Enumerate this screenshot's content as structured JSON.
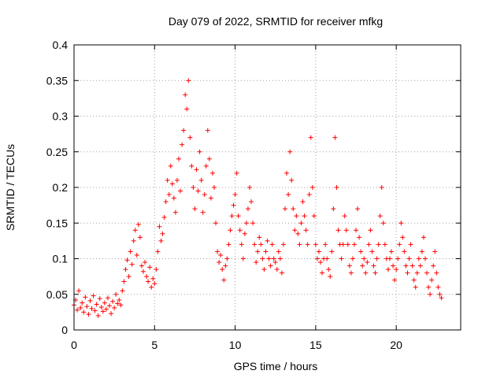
{
  "chart_data": {
    "type": "scatter",
    "title": "Day 079 of 2022, SRMTID for receiver mfkg",
    "xlabel": "GPS time / hours",
    "ylabel": "SRMTID / TECUs",
    "xlim": [
      0,
      24
    ],
    "ylim": [
      0,
      0.4
    ],
    "xticks": [
      0,
      5,
      10,
      15,
      20
    ],
    "yticks": [
      0,
      0.05,
      0.1,
      0.15,
      0.2,
      0.25,
      0.3,
      0.35,
      0.4
    ],
    "xtick_labels": [
      "0",
      "5",
      "10",
      "15",
      "20"
    ],
    "ytick_labels": [
      "0",
      "0.05",
      "0.1",
      "0.15",
      "0.2",
      "0.25",
      "0.3",
      "0.35",
      "0.4"
    ],
    "grid": true,
    "marker": "+",
    "marker_color": "#ff0000",
    "series": [
      {
        "name": "SRMTID",
        "x": [
          0.0,
          0.1,
          0.2,
          0.3,
          0.4,
          0.5,
          0.6,
          0.7,
          0.8,
          0.9,
          1.0,
          1.1,
          1.2,
          1.3,
          1.4,
          1.5,
          1.6,
          1.7,
          1.8,
          1.9,
          2.0,
          2.1,
          2.2,
          2.3,
          2.4,
          2.5,
          2.6,
          2.7,
          2.8,
          2.9,
          3.0,
          3.1,
          3.2,
          3.3,
          3.4,
          3.5,
          3.6,
          3.7,
          3.8,
          3.9,
          4.0,
          4.1,
          4.2,
          4.3,
          4.4,
          4.5,
          4.6,
          4.7,
          4.8,
          4.9,
          5.0,
          5.1,
          5.2,
          5.3,
          5.4,
          5.5,
          5.6,
          5.7,
          5.8,
          5.9,
          6.0,
          6.1,
          6.2,
          6.3,
          6.4,
          6.5,
          6.6,
          6.7,
          6.8,
          6.9,
          7.0,
          7.1,
          7.2,
          7.3,
          7.4,
          7.5,
          7.6,
          7.7,
          7.8,
          7.9,
          8.0,
          8.1,
          8.2,
          8.3,
          8.4,
          8.5,
          8.6,
          8.7,
          8.8,
          8.9,
          9.0,
          9.1,
          9.2,
          9.3,
          9.4,
          9.5,
          9.6,
          9.7,
          9.8,
          9.9,
          10.0,
          10.1,
          10.2,
          10.3,
          10.4,
          10.5,
          10.6,
          10.7,
          10.8,
          10.9,
          11.0,
          11.1,
          11.2,
          11.3,
          11.4,
          11.5,
          11.6,
          11.7,
          11.8,
          11.9,
          12.0,
          12.1,
          12.2,
          12.3,
          12.4,
          12.5,
          12.6,
          12.7,
          12.8,
          12.9,
          13.0,
          13.1,
          13.2,
          13.3,
          13.4,
          13.5,
          13.6,
          13.7,
          13.8,
          13.9,
          14.0,
          14.1,
          14.2,
          14.3,
          14.4,
          14.5,
          14.6,
          14.7,
          14.8,
          14.9,
          15.0,
          15.1,
          15.2,
          15.3,
          15.4,
          15.5,
          15.6,
          15.7,
          15.8,
          15.9,
          16.0,
          16.1,
          16.2,
          16.3,
          16.4,
          16.5,
          16.6,
          16.7,
          16.8,
          16.9,
          17.0,
          17.1,
          17.2,
          17.3,
          17.4,
          17.5,
          17.6,
          17.7,
          17.8,
          17.9,
          18.0,
          18.1,
          18.2,
          18.3,
          18.4,
          18.5,
          18.6,
          18.7,
          18.8,
          18.9,
          19.0,
          19.1,
          19.2,
          19.3,
          19.4,
          19.5,
          19.6,
          19.7,
          19.8,
          19.9,
          20.0,
          20.1,
          20.2,
          20.3,
          20.4,
          20.5,
          20.6,
          20.7,
          20.8,
          20.9,
          21.0,
          21.1,
          21.2,
          21.3,
          21.4,
          21.5,
          21.6,
          21.7,
          21.8,
          21.9,
          22.0,
          22.1,
          22.2,
          22.3,
          22.4,
          22.5,
          22.6,
          22.7,
          22.8
        ],
        "y": [
          0.035,
          0.042,
          0.028,
          0.055,
          0.031,
          0.038,
          0.025,
          0.046,
          0.033,
          0.022,
          0.041,
          0.03,
          0.048,
          0.027,
          0.036,
          0.02,
          0.044,
          0.032,
          0.026,
          0.038,
          0.029,
          0.045,
          0.034,
          0.023,
          0.04,
          0.031,
          0.05,
          0.037,
          0.042,
          0.035,
          0.055,
          0.068,
          0.085,
          0.098,
          0.075,
          0.11,
          0.092,
          0.125,
          0.14,
          0.105,
          0.148,
          0.13,
          0.09,
          0.082,
          0.095,
          0.075,
          0.068,
          0.088,
          0.06,
          0.072,
          0.065,
          0.085,
          0.11,
          0.145,
          0.125,
          0.135,
          0.158,
          0.18,
          0.21,
          0.19,
          0.23,
          0.205,
          0.185,
          0.165,
          0.21,
          0.24,
          0.195,
          0.26,
          0.28,
          0.33,
          0.31,
          0.35,
          0.27,
          0.23,
          0.2,
          0.17,
          0.225,
          0.195,
          0.25,
          0.21,
          0.165,
          0.19,
          0.23,
          0.28,
          0.24,
          0.185,
          0.22,
          0.2,
          0.15,
          0.11,
          0.095,
          0.105,
          0.085,
          0.07,
          0.09,
          0.1,
          0.12,
          0.14,
          0.16,
          0.175,
          0.19,
          0.22,
          0.16,
          0.14,
          0.12,
          0.1,
          0.135,
          0.15,
          0.17,
          0.2,
          0.18,
          0.15,
          0.12,
          0.095,
          0.11,
          0.13,
          0.12,
          0.1,
          0.085,
          0.11,
          0.125,
          0.1,
          0.09,
          0.12,
          0.1,
          0.095,
          0.085,
          0.11,
          0.1,
          0.08,
          0.12,
          0.17,
          0.22,
          0.19,
          0.25,
          0.21,
          0.17,
          0.14,
          0.16,
          0.135,
          0.12,
          0.15,
          0.18,
          0.16,
          0.14,
          0.12,
          0.19,
          0.27,
          0.2,
          0.16,
          0.12,
          0.1,
          0.11,
          0.095,
          0.08,
          0.1,
          0.12,
          0.1,
          0.085,
          0.075,
          0.11,
          0.17,
          0.27,
          0.2,
          0.14,
          0.12,
          0.1,
          0.12,
          0.16,
          0.14,
          0.12,
          0.09,
          0.08,
          0.1,
          0.12,
          0.14,
          0.17,
          0.13,
          0.11,
          0.09,
          0.1,
          0.08,
          0.095,
          0.12,
          0.14,
          0.11,
          0.09,
          0.08,
          0.1,
          0.12,
          0.16,
          0.2,
          0.15,
          0.12,
          0.1,
          0.085,
          0.1,
          0.11,
          0.09,
          0.07,
          0.085,
          0.1,
          0.12,
          0.15,
          0.13,
          0.11,
          0.09,
          0.08,
          0.1,
          0.12,
          0.09,
          0.07,
          0.06,
          0.08,
          0.1,
          0.09,
          0.11,
          0.13,
          0.1,
          0.08,
          0.06,
          0.05,
          0.07,
          0.09,
          0.11,
          0.08,
          0.06,
          0.05,
          0.045
        ]
      }
    ]
  }
}
